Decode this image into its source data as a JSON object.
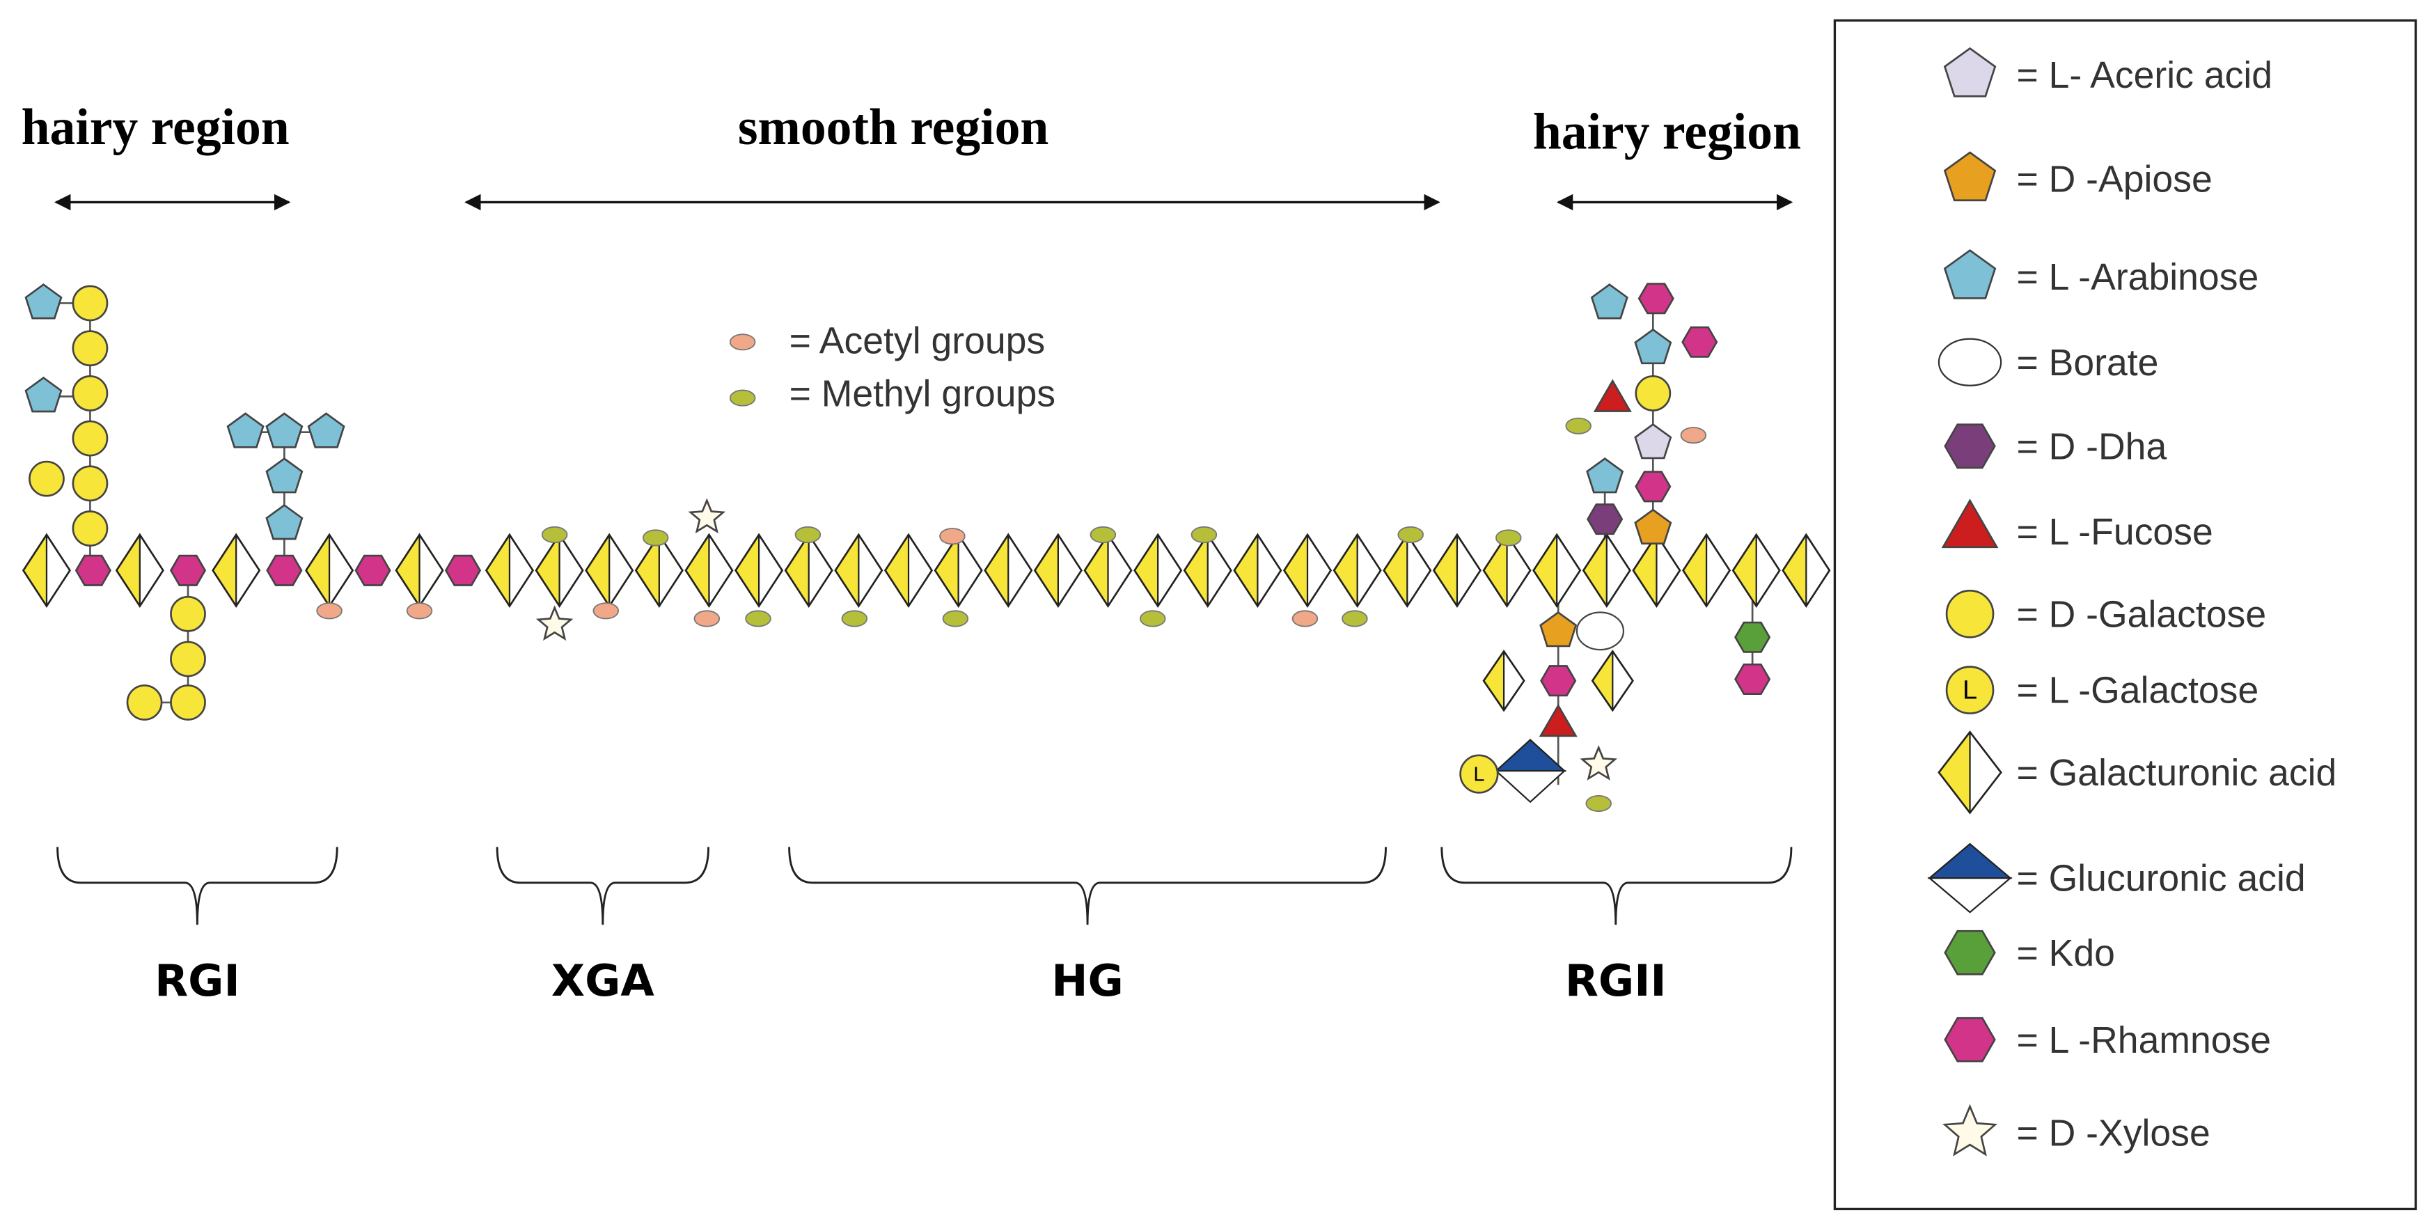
{
  "regions": [
    {
      "label": "hairy region"
    },
    {
      "label": "smooth region"
    },
    {
      "label": "hairy region"
    }
  ],
  "segments": [
    "RGI",
    "XGA",
    "HG",
    "RGII"
  ],
  "inline_legend": [
    {
      "label": "= Acetyl groups"
    },
    {
      "label": "= Methyl groups"
    }
  ],
  "legend": [
    {
      "label": "= L- Aceric acid"
    },
    {
      "label": "= D -Apiose"
    },
    {
      "label": "= L -Arabinose"
    },
    {
      "label": "= Borate"
    },
    {
      "label": "= D -Dha"
    },
    {
      "label": "= L -Fucose"
    },
    {
      "label": "= D -Galactose"
    },
    {
      "label": "= L -Galactose"
    },
    {
      "label": "= Galacturonic acid"
    },
    {
      "label": "= Glucuronic acid"
    },
    {
      "label": "= Kdo"
    },
    {
      "label": "= L -Rhamnose"
    },
    {
      "label": "= D -Xylose"
    }
  ]
}
